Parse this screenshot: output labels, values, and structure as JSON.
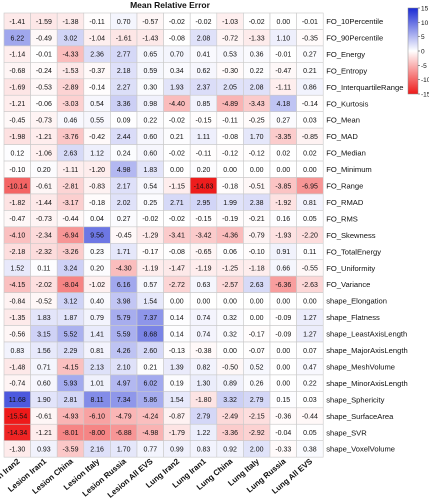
{
  "chart_data": {
    "type": "heatmap",
    "title": "Mean Relative Error",
    "columns": [
      "Lesion Iran2",
      "Lesion Iran1",
      "Lesion China",
      "Lesion Italy",
      "Lesion Russia",
      "Lesion All EVS",
      "Lung Iran2",
      "Lung Iran1",
      "Lung China",
      "Lung Italy",
      "Lung Russia",
      "Lung All EVS"
    ],
    "rows": [
      "FO_10Percentile",
      "FO_90Percentile",
      "FO_Energy",
      "FO_Entropy",
      "FO_InterquartileRange",
      "FO_Kurtosis",
      "FO_Mean",
      "FO_MAD",
      "FO_Median",
      "FO_Minimum",
      "FO_Range",
      "FO_RMAD",
      "FO_RMS",
      "FO_Skewness",
      "FO_TotalEnergy",
      "FO_Uniformity",
      "FO_Variance",
      "shape_Elongation",
      "shape_Flatness",
      "shape_LeastAxisLength",
      "shape_MajorAxisLength",
      "shape_MeshVolume",
      "shape_MinorAxisLength",
      "shape_Sphericity",
      "shape_SurfaceArea",
      "shape_SVR",
      "shape_VoxelVolume"
    ],
    "values": [
      [
        -1.41,
        -1.59,
        -1.38,
        -0.11,
        0.7,
        -0.57,
        -0.02,
        -0.02,
        -1.03,
        -0.02,
        0.0,
        -0.01
      ],
      [
        6.22,
        -0.49,
        3.02,
        -1.04,
        -1.61,
        -1.43,
        -0.08,
        2.08,
        -0.72,
        -1.33,
        1.1,
        -0.35
      ],
      [
        -1.14,
        -0.01,
        -4.33,
        2.36,
        2.77,
        0.65,
        0.7,
        0.41,
        0.53,
        0.36,
        -0.01,
        0.27
      ],
      [
        -0.68,
        -0.24,
        -1.53,
        -0.37,
        2.18,
        0.59,
        0.34,
        0.62,
        -0.3,
        0.22,
        -0.47,
        0.21
      ],
      [
        -1.69,
        -0.53,
        -2.89,
        -0.14,
        2.27,
        0.3,
        1.93,
        2.37,
        2.05,
        2.08,
        -1.11,
        0.86
      ],
      [
        -1.21,
        -0.06,
        -3.03,
        0.54,
        3.36,
        0.98,
        -4.4,
        0.85,
        -4.89,
        -3.43,
        4.18,
        -0.14
      ],
      [
        -0.45,
        -0.73,
        0.46,
        0.55,
        0.09,
        0.22,
        -0.02,
        -0.15,
        -0.11,
        -0.25,
        0.27,
        0.03
      ],
      [
        -1.98,
        -1.21,
        -3.76,
        -0.42,
        2.44,
        0.6,
        0.21,
        1.11,
        -0.08,
        1.7,
        -3.35,
        -0.85
      ],
      [
        0.12,
        -1.06,
        2.63,
        1.12,
        0.24,
        0.6,
        -0.02,
        -0.11,
        -0.12,
        -0.12,
        0.02,
        0.02
      ],
      [
        -0.1,
        0.2,
        -1.11,
        -1.2,
        4.98,
        1.83,
        0.0,
        0.2,
        0.0,
        0.0,
        0.0,
        0.0
      ],
      [
        -10.14,
        -0.61,
        -2.81,
        -0.83,
        2.17,
        0.54,
        -1.15,
        -14.83,
        -0.18,
        -0.51,
        -3.85,
        -6.95
      ],
      [
        -1.82,
        -1.44,
        -3.17,
        -0.18,
        2.02,
        0.25,
        2.71,
        2.95,
        1.99,
        2.38,
        -1.92,
        0.81
      ],
      [
        -0.47,
        -0.73,
        -0.44,
        0.04,
        0.27,
        -0.02,
        -0.02,
        -0.15,
        -0.19,
        -0.21,
        0.16,
        0.05
      ],
      [
        -4.1,
        -2.34,
        -6.94,
        9.56,
        -0.45,
        -1.29,
        -3.41,
        -3.42,
        -4.36,
        -0.79,
        -1.93,
        -2.2
      ],
      [
        -2.18,
        -2.32,
        -3.26,
        0.23,
        1.71,
        -0.17,
        -0.08,
        -0.65,
        0.06,
        -0.1,
        0.91,
        0.11
      ],
      [
        1.52,
        0.11,
        3.24,
        0.2,
        -4.3,
        -1.19,
        -1.47,
        -1.19,
        -1.25,
        -1.18,
        0.66,
        -0.55
      ],
      [
        -4.15,
        -2.02,
        -8.04,
        -1.02,
        6.16,
        0.57,
        -2.72,
        0.63,
        -2.57,
        2.63,
        -6.36,
        -2.63
      ],
      [
        -0.84,
        -0.52,
        3.12,
        0.4,
        3.98,
        1.54,
        0.0,
        0.0,
        0.0,
        0.0,
        0.0,
        0.0
      ],
      [
        -1.35,
        1.83,
        1.87,
        0.79,
        5.79,
        7.37,
        0.14,
        0.74,
        0.32,
        0.0,
        -0.09,
        1.27
      ],
      [
        -0.56,
        3.15,
        5.52,
        1.41,
        5.59,
        8.68,
        0.14,
        0.74,
        0.32,
        -0.17,
        -0.09,
        1.27
      ],
      [
        0.83,
        1.56,
        2.29,
        0.81,
        4.26,
        2.6,
        -0.13,
        -0.38,
        0.0,
        -0.07,
        0.0,
        0.07
      ],
      [
        -1.48,
        0.71,
        -4.15,
        2.13,
        2.1,
        0.21,
        1.39,
        0.82,
        -0.5,
        0.52,
        0.0,
        0.47
      ],
      [
        -0.74,
        0.6,
        5.93,
        1.01,
        4.97,
        6.02,
        0.19,
        1.3,
        0.89,
        0.26,
        0.0,
        0.22
      ],
      [
        11.68,
        1.9,
        2.81,
        8.11,
        7.34,
        5.86,
        1.54,
        -1.8,
        3.32,
        2.79,
        0.15,
        0.03
      ],
      [
        -15.54,
        -0.61,
        -4.93,
        -6.1,
        -4.79,
        -4.24,
        -0.87,
        2.79,
        -2.49,
        -2.15,
        -0.36,
        -0.44
      ],
      [
        -14.34,
        -1.21,
        -8.01,
        -8.0,
        -6.88,
        -4.98,
        -1.79,
        1.22,
        -3.36,
        -2.92,
        -0.04,
        0.05
      ],
      [
        -1.3,
        0.93,
        -3.59,
        2.16,
        1.7,
        0.77,
        0.99,
        0.83,
        0.92,
        2.0,
        -0.33,
        0.38
      ]
    ],
    "legend": {
      "ticks": [
        15,
        10,
        5,
        0,
        -5,
        -10,
        -15
      ],
      "range": [
        -15,
        15
      ],
      "colors": {
        "high": "#1a2ad4",
        "mid": "#ffffff",
        "low": "#ee1a1a"
      }
    },
    "grid": true
  }
}
